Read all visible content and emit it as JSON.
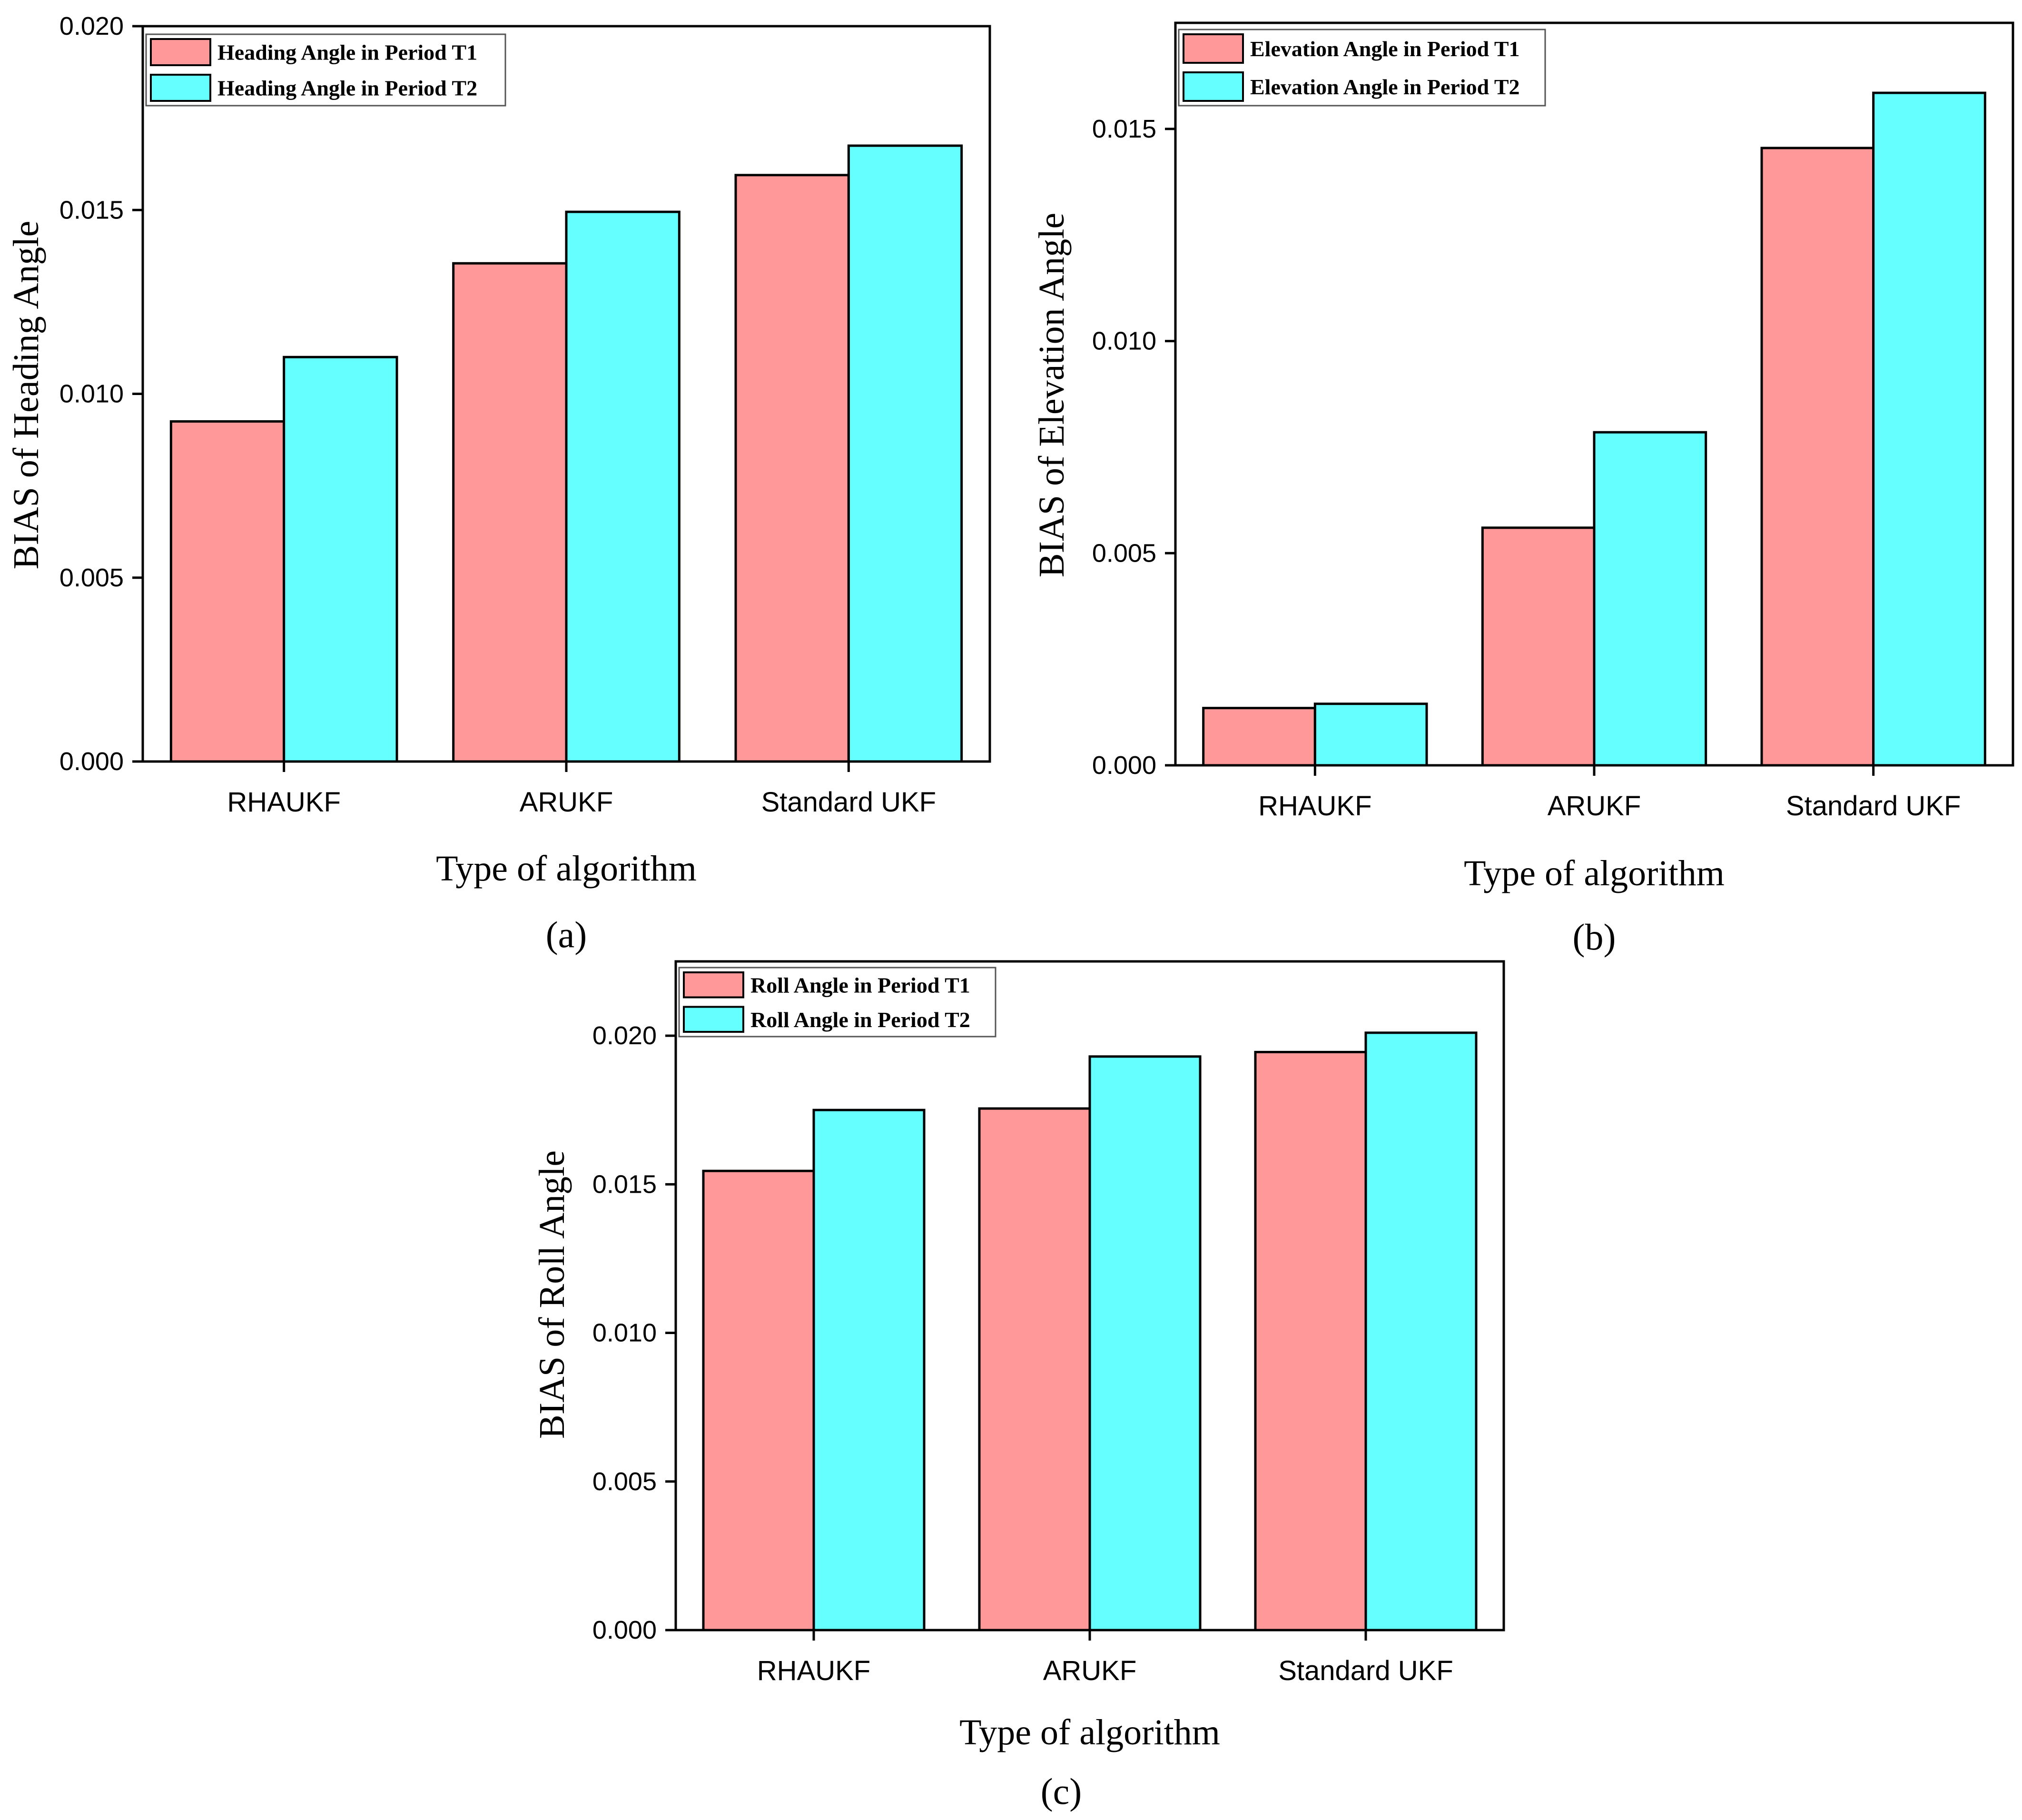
{
  "colors": {
    "series1": "#ff9999",
    "series2": "#66ffff",
    "stroke": "#000000"
  },
  "chart_data": [
    {
      "type": "bar",
      "panel_label": "(a)",
      "panel_letter": "a",
      "categories": [
        "RHAUKF",
        "ARUKF",
        "Standard UKF"
      ],
      "series": [
        {
          "name": "Heading Angle in Period T1",
          "values": [
            0.00925,
            0.01355,
            0.01595
          ]
        },
        {
          "name": "Heading Angle in Period T2",
          "values": [
            0.011,
            0.01495,
            0.01675
          ]
        }
      ],
      "xlabel": "Type of algorithm",
      "ylabel": "BIAS of Heading Angle",
      "ylim": [
        0,
        0.02
      ],
      "yticks": [
        "0.000",
        "0.005",
        "0.010",
        "0.015",
        "0.020"
      ],
      "legend_position": "top-left"
    },
    {
      "type": "bar",
      "panel_label": "(b)",
      "panel_letter": "b",
      "categories": [
        "RHAUKF",
        "ARUKF",
        "Standard UKF"
      ],
      "series": [
        {
          "name": "Elevation Angle in Period T1",
          "values": [
            0.00135,
            0.0056,
            0.01455
          ]
        },
        {
          "name": "Elevation Angle in Period T2",
          "values": [
            0.00145,
            0.00785,
            0.01585
          ]
        }
      ],
      "xlabel": "Type of algorithm",
      "ylabel": "BIAS of Elevation Angle",
      "ylim": [
        0,
        0.0175
      ],
      "yticks": [
        "0.000",
        "0.005",
        "0.010",
        "0.015"
      ],
      "legend_position": "top-left"
    },
    {
      "type": "bar",
      "panel_label": "(c)",
      "panel_letter": "c",
      "categories": [
        "RHAUKF",
        "ARUKF",
        "Standard UKF"
      ],
      "series": [
        {
          "name": "Roll Angle in Period T1",
          "values": [
            0.01545,
            0.01755,
            0.01945
          ]
        },
        {
          "name": "Roll Angle in Period T2",
          "values": [
            0.0175,
            0.0193,
            0.0201
          ]
        }
      ],
      "xlabel": "Type of algorithm",
      "ylabel": "BIAS of Roll Angle",
      "ylim": [
        0,
        0.0225
      ],
      "yticks": [
        "0.000",
        "0.005",
        "0.010",
        "0.015",
        "0.020"
      ],
      "legend_position": "top-left"
    }
  ]
}
